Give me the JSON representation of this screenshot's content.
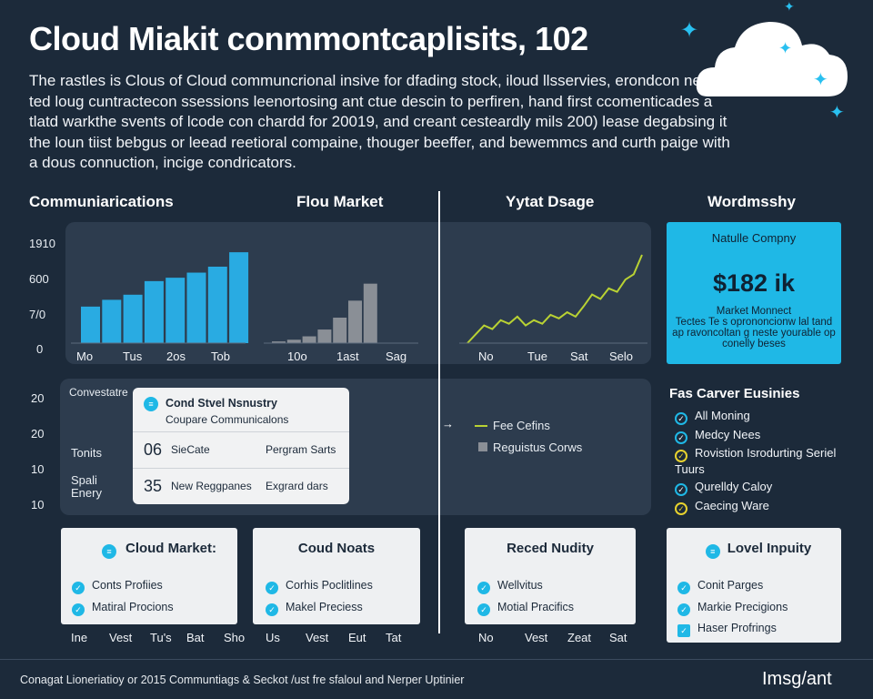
{
  "title": "Cloud Miakit conmmontcaplisits, 102",
  "intro": "The rastles is Clous of Cloud communcrional insive for dfading stock, iloud llsservies, erondcon neades ted loug cuntractecon ssessions leenortosing ant ctue descin to perfiren, hand first ccomenticades a tlatd warkthe svents of lcode con chardd for 20019, and creant cesteardly mils 200) lease degabsing it the loun tiist bebgus or leead reetioral compaine, thouger beeffer, and bewemmcs and curth paige with a dous connuction, incige condricators.",
  "headers": {
    "col1": "Communiarications",
    "col2": "Flou Market",
    "col3": "Yytat Dsage",
    "col4": "Wordmsshy"
  },
  "y_ticks_top": [
    "1910",
    "600",
    "7/0",
    "0"
  ],
  "y_ticks_bottom": [
    "20",
    "20",
    "10",
    "10"
  ],
  "chart_data": [
    {
      "type": "bar",
      "categories": [
        "",
        "",
        "",
        "",
        "",
        "",
        "",
        ""
      ],
      "values": [
        43,
        51,
        57,
        73,
        77,
        83,
        90,
        107
      ],
      "ylim": [
        0,
        120
      ],
      "x_tick_labels": [
        "Mo",
        "Tus",
        "2os",
        "Tob"
      ],
      "color": "#29abe2"
    },
    {
      "type": "bar",
      "categories": [
        "",
        "",
        "",
        "",
        "",
        "",
        ""
      ],
      "values": [
        2,
        4,
        8,
        16,
        30,
        50,
        70
      ],
      "ylim": [
        0,
        120
      ],
      "x_tick_labels": [
        "10o",
        "1ast",
        "Sag"
      ],
      "color": "#8a8f96"
    },
    {
      "type": "line",
      "x": [
        0,
        1,
        2,
        3,
        4,
        5,
        6,
        7,
        8,
        9,
        10,
        11,
        12,
        13,
        14,
        15,
        16,
        17,
        18,
        19,
        20,
        21
      ],
      "values": [
        0,
        10,
        20,
        16,
        26,
        22,
        30,
        20,
        26,
        22,
        32,
        28,
        35,
        30,
        42,
        55,
        50,
        62,
        58,
        72,
        78,
        100
      ],
      "ylim": [
        0,
        100
      ],
      "x_tick_labels": [
        "No",
        "Tue",
        "Sat",
        "Selo"
      ],
      "color": "#b9d233"
    }
  ],
  "teal_card": {
    "company": "Natulle Compny",
    "value": "$182 ik",
    "caption_title": "Market Monnect",
    "caption": "Tectes Te s oprononcionw lal tand ap ravoncoltan g neste yourable op conelly beses"
  },
  "left_labels": {
    "convo": "Convestatre",
    "tonits": "Tonits",
    "spali": "Spali",
    "enery": "Enery"
  },
  "popup": {
    "title": "Cond Stvel Nsnustry",
    "subtitle": "Coupare Communicalons",
    "row1_num": "06",
    "row1_a": "SieCate",
    "row1_b": "Pergram Sarts",
    "row2_num": "35",
    "row2_a": "New Reggpanes",
    "row2_b": "Exgrard dars"
  },
  "mid_legend": {
    "line_label": "Fee Cefins",
    "box_label": "Reguistus Corws"
  },
  "right_list": {
    "title": "Fas Carver Eusinies",
    "items": [
      "All Moning",
      "Medcy Nees",
      "Rovistion Isrodurting Seriel Tuurs",
      "Qurelldy Caloy",
      "Caecing Ware"
    ]
  },
  "cards": [
    {
      "title": "Cloud Market:",
      "items": [
        "Conts Profiies",
        "Matiral Procions"
      ]
    },
    {
      "title": "Coud Noats",
      "items": [
        "Corhis Poclitlines",
        "Makel Preciess"
      ]
    },
    {
      "title": "Reced Nudity",
      "items": [
        "Wellvitus",
        "Motial Pracifics"
      ]
    },
    {
      "title": "Lovel Inpuity",
      "items": [
        "Conit Parges",
        "Markie Precigions",
        "Haser Profrings"
      ]
    }
  ],
  "bottom_x_labels": [
    "Ine",
    "Vest",
    "Tu's",
    "Bat",
    "Sho",
    "Us",
    "Vest",
    "Eut",
    "Tat",
    "No",
    "Vest",
    "Zeat",
    "Sat"
  ],
  "footer": "Conagat Lioneriatioy or 2015 Communtiags & Seckot /ust fre sfaloul and Nerper Uptinier",
  "brand": "Imsg/ant",
  "colors": {
    "bg": "#1c2a3a",
    "accent": "#1fb8e6",
    "line": "#b9d233",
    "bar_gray": "#8a8f96"
  }
}
